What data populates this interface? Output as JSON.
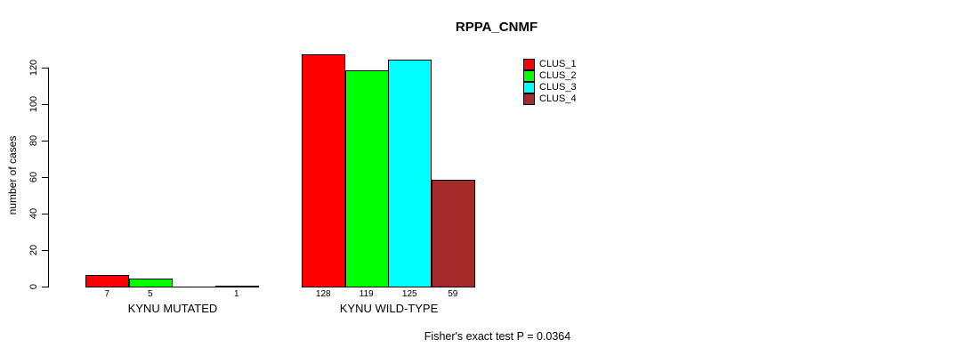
{
  "chart_data": {
    "type": "bar",
    "title": "RPPA_CNMF",
    "ylabel": "number of cases",
    "xlabel": "",
    "yticks": [
      0,
      20,
      40,
      60,
      80,
      100,
      120
    ],
    "ylim": [
      0,
      130
    ],
    "grid": false,
    "legend_position": "right",
    "categories": [
      "KYNU MUTATED",
      "KYNU WILD-TYPE"
    ],
    "groups": [
      {
        "label": "KYNU MUTATED",
        "values": [
          7,
          5,
          0,
          1
        ]
      },
      {
        "label": "KYNU WILD-TYPE",
        "values": [
          128,
          119,
          125,
          59
        ]
      }
    ],
    "series": [
      {
        "name": "CLUS_1",
        "color": "#ff0000",
        "values": [
          7,
          128
        ]
      },
      {
        "name": "CLUS_2",
        "color": "#00ff00",
        "values": [
          5,
          119
        ]
      },
      {
        "name": "CLUS_3",
        "color": "#00ffff",
        "values": [
          0,
          125
        ]
      },
      {
        "name": "CLUS_4",
        "color": "#a52a2a",
        "values": [
          1,
          59
        ]
      }
    ],
    "bar_value_labels_shown": true,
    "zero_value_label_hidden": true
  },
  "caption": "Fisher's exact test P = 0.0364"
}
